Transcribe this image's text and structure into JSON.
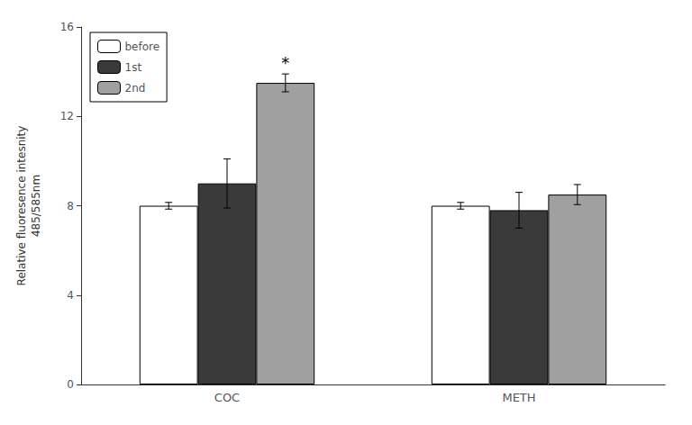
{
  "chart_data": {
    "type": "bar",
    "categories": [
      "COC",
      "METH"
    ],
    "series": [
      {
        "name": "before",
        "color": "#ffffff",
        "values": [
          8.0,
          8.0
        ],
        "errors": [
          0.15,
          0.15
        ]
      },
      {
        "name": "1st",
        "color": "#3a3a3a",
        "values": [
          9.0,
          7.8
        ],
        "errors": [
          1.1,
          0.8
        ]
      },
      {
        "name": "2nd",
        "color": "#a0a0a0",
        "values": [
          13.5,
          8.5
        ],
        "errors": [
          0.4,
          0.45
        ]
      }
    ],
    "ylabel": "Relative fluoresence intesnity\n485/585nm",
    "ylim": [
      0,
      16
    ],
    "yticks": [
      0,
      4,
      8,
      12,
      16
    ],
    "annotations": [
      {
        "text": "*",
        "category": "COC",
        "series": "2nd"
      }
    ],
    "legend": "upper left",
    "grid": false
  }
}
